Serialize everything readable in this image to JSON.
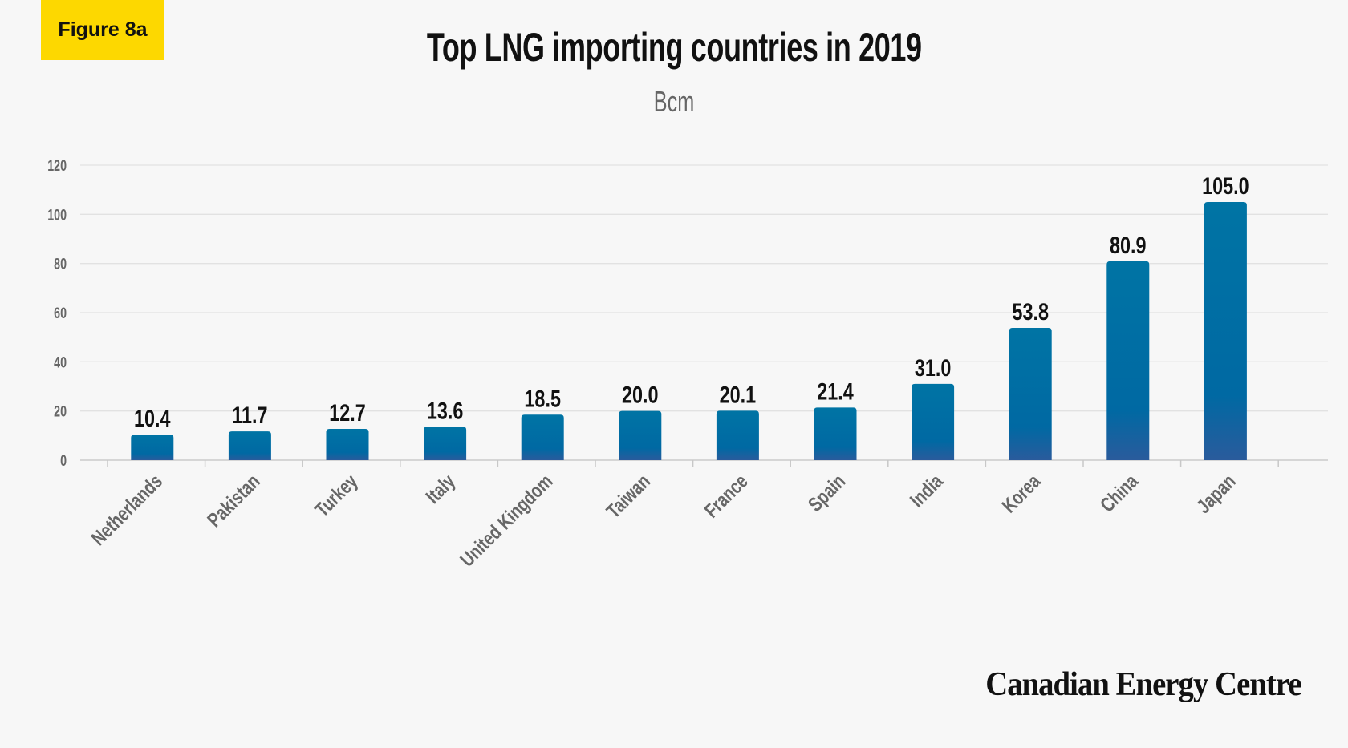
{
  "badge": "Figure 8a",
  "chart_data": {
    "type": "bar",
    "title": "Top LNG importing countries in 2019",
    "subtitle": "Bcm",
    "xlabel": "",
    "ylabel": "",
    "categories": [
      "Netherlands",
      "Pakistan",
      "Turkey",
      "Italy",
      "United Kingdom",
      "Taiwan",
      "France",
      "Spain",
      "India",
      "Korea",
      "China",
      "Japan"
    ],
    "values": [
      10.4,
      11.7,
      12.7,
      13.6,
      18.5,
      20.0,
      20.1,
      21.4,
      31.0,
      53.8,
      80.9,
      105.0
    ],
    "data_labels": [
      "10.4",
      "11.7",
      "12.7",
      "13.6",
      "18.5",
      "20.0",
      "20.1",
      "21.4",
      "31.0",
      "53.8",
      "80.9",
      "105.0"
    ],
    "ylim": [
      0,
      120
    ],
    "yticks": [
      "0",
      "20",
      "40",
      "60",
      "80",
      "100",
      "120"
    ],
    "grid": true,
    "colors": {
      "bar_top": "#0074a4",
      "bar_bottom": "#2a5b9c",
      "grid": "#e2e2e2",
      "badge": "#fdd800"
    }
  },
  "source_logo": "Canadian Energy Centre"
}
